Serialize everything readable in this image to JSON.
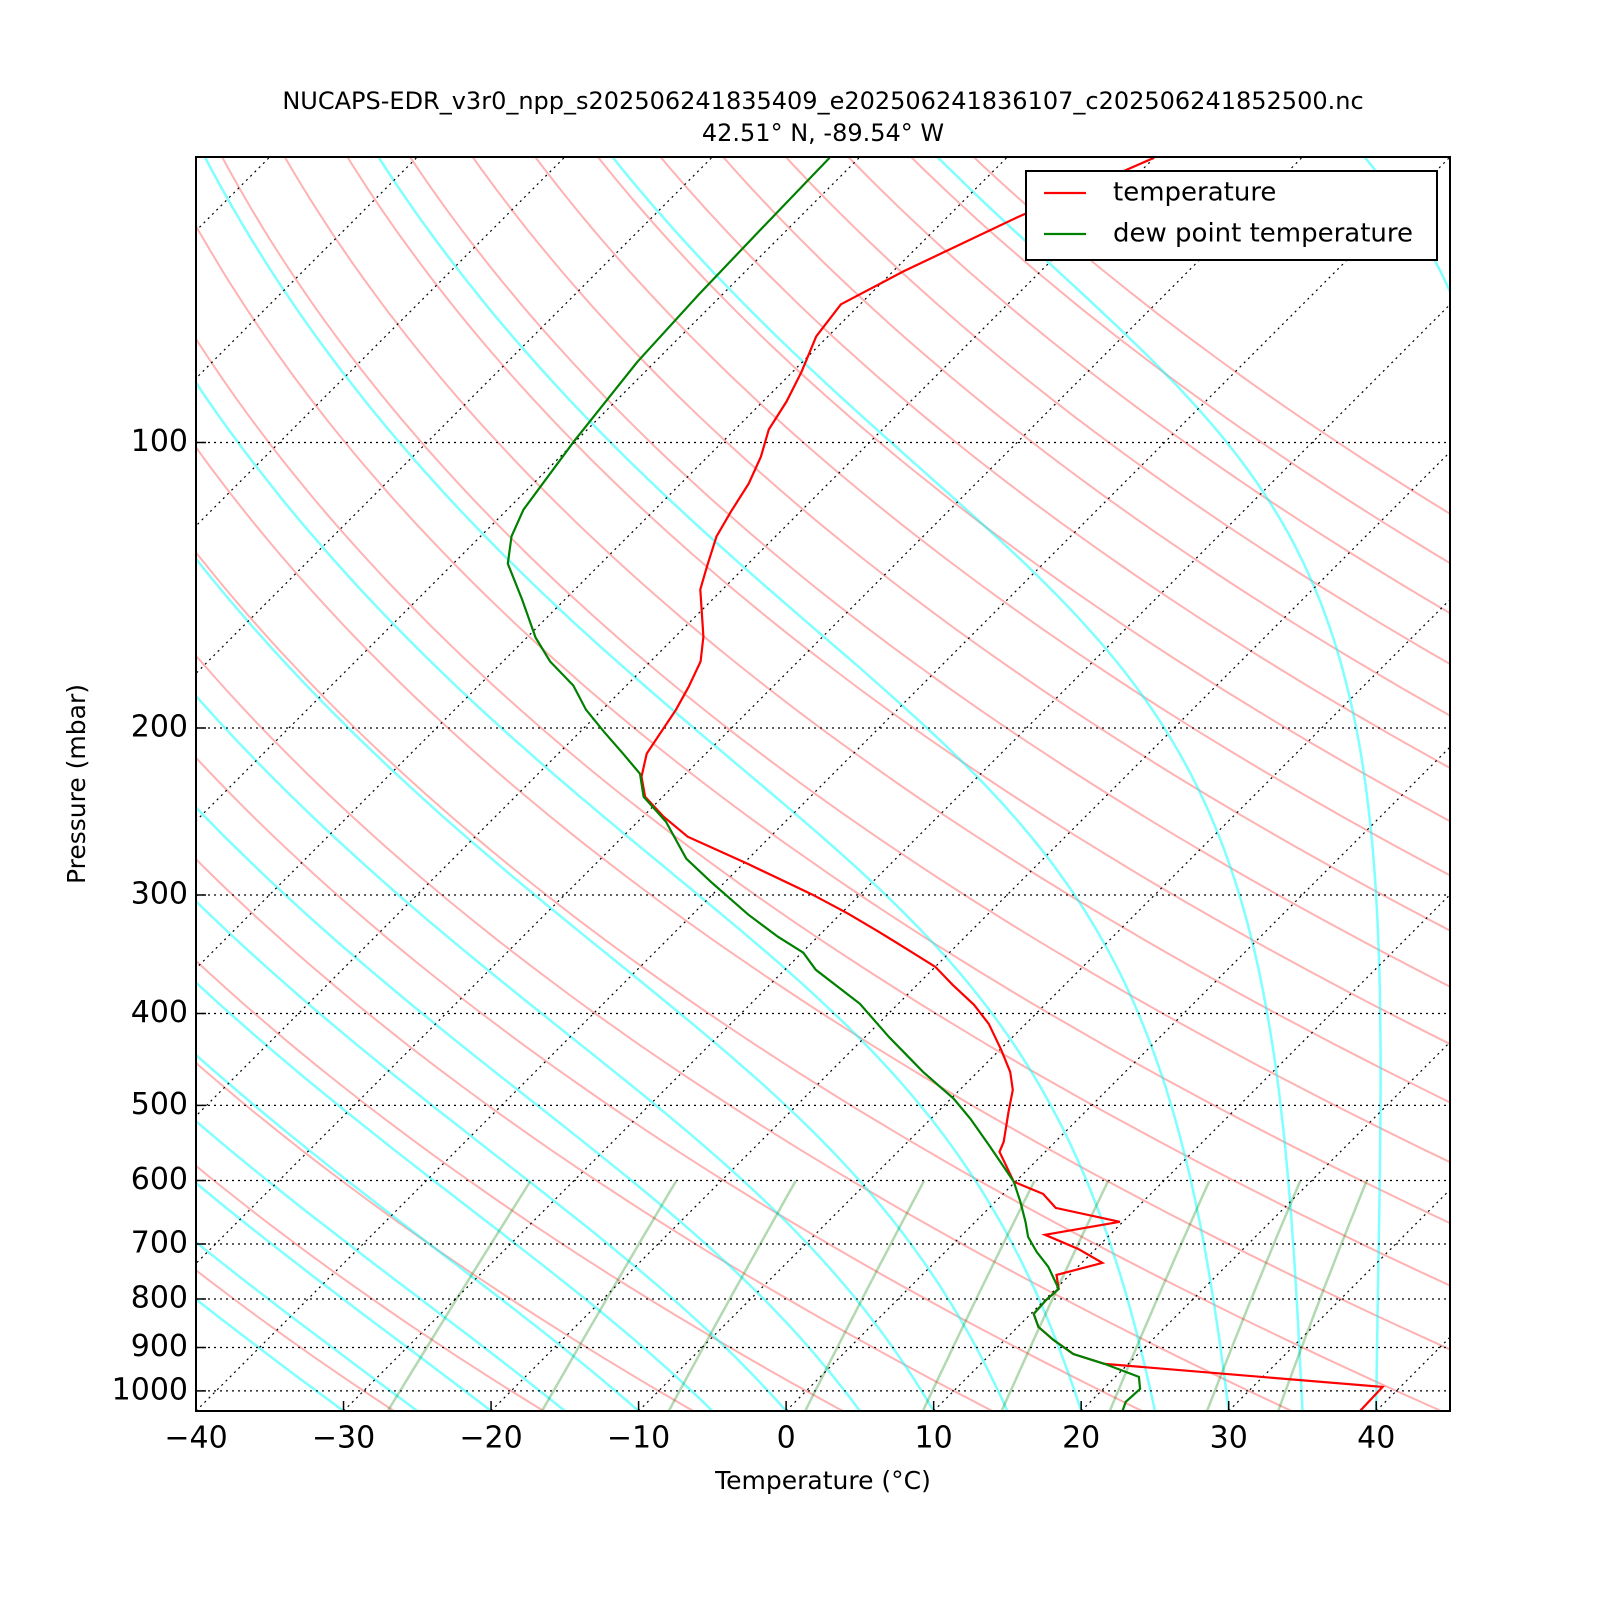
{
  "chart_data": {
    "type": "skewt",
    "title": "NUCAPS-EDR_v3r0_npp_s202506241835409_e202506241836107_c202506241852500.nc",
    "subtitle": "42.51° N, -89.54° W",
    "xlabel": "Temperature (°C)",
    "ylabel": "Pressure (mbar)",
    "xlim": [
      -40,
      45
    ],
    "ylim": [
      1050,
      50
    ],
    "log_y": true,
    "grid": true,
    "legend": "upper right",
    "xticks": [
      {
        "value": -40,
        "label": "−40"
      },
      {
        "value": -30,
        "label": "−30"
      },
      {
        "value": -20,
        "label": "−20"
      },
      {
        "value": -10,
        "label": "−10"
      },
      0,
      10,
      20,
      30,
      40
    ],
    "yticks": [
      100,
      200,
      300,
      400,
      500,
      600,
      700,
      800,
      900,
      1000
    ],
    "series": [
      {
        "name": "temperature",
        "color": "#ff0000",
        "temperature": [
          -60.0,
          -65.2,
          -69.3,
          -71.3,
          -70.8,
          -69.4,
          -68.4,
          -67.7,
          -66.4,
          -65.4,
          -64.7,
          -64.0,
          -62.6,
          -61.5,
          -58.1,
          -56.6,
          -55.7,
          -55.0,
          -54.4,
          -54.0,
          -52.8,
          -51.2,
          -48.6,
          -45.6,
          -39.7,
          -33.2,
          -29.5,
          -26.2,
          -23.0,
          -20.0,
          -17.6,
          -14.8,
          -12.5,
          -9.9,
          -7.8,
          -6.4,
          -5.2,
          -3.5,
          -3.1,
          -1.6,
          -0.1,
          2.7,
          4.5,
          9.8,
          5.6,
          8.8,
          11.4,
          9.1,
          10.2,
          10.1,
          10.2,
          11.4,
          13.3,
          15.6,
          18.4,
          38.8,
          38.9
        ],
        "pressure": [
          50.1,
          57.8,
          66.0,
          71.5,
          77.3,
          84.2,
          90.5,
          96.9,
          103.5,
          110.5,
          118.3,
          125.6,
          135.2,
          142.9,
          160.2,
          170.2,
          180.9,
          191.3,
          204.2,
          212.9,
          225.1,
          236.3,
          248.0,
          260.4,
          278.1,
          299.8,
          313.9,
          328.0,
          342.7,
          357.1,
          373.1,
          391.6,
          410.2,
          436.9,
          460.9,
          481.5,
          507.9,
          546.2,
          559.7,
          580.4,
          601.9,
          619.8,
          641.2,
          663.3,
          684.5,
          708.3,
          732.8,
          754.5,
          780.6,
          801.8,
          829.5,
          856.1,
          883.6,
          914.2,
          936.6,
          990.4,
          1050
        ]
      },
      {
        "name": "dew point temperature",
        "color": "#008000",
        "temperature": [
          -82.0,
          -81.8,
          -81.6,
          -81.2,
          -80.1,
          -78.9,
          -77.9,
          -76.3,
          -72.9,
          -69.4,
          -66.8,
          -63.6,
          -61.1,
          -58.4,
          -55.6,
          -53.1,
          -51.3,
          -48.1,
          -44.2,
          -41.0,
          -36.2,
          -32.7,
          -29.9,
          -27.9,
          -22.6,
          -18.4,
          -13.7,
          -9.8,
          -7.3,
          -4.3,
          -1.8,
          -0.1,
          1.7,
          3.4,
          4.6,
          6.2,
          8.0,
          10.2,
          10.1,
          10.2,
          11.4,
          13.3,
          15.6,
          18.4,
          21.6,
          22.5,
          22.4,
          22.8
        ],
        "pressure": [
          50.1,
          59.9,
          69.8,
          82.2,
          99.8,
          117.7,
          125.6,
          134.2,
          146.4,
          160.6,
          170.2,
          180.4,
          191.3,
          201.8,
          212.9,
          223.5,
          236.3,
          251.0,
          274.7,
          290.4,
          314.7,
          332.0,
          345.1,
          359.7,
          390.7,
          423.3,
          460.9,
          492.0,
          516.7,
          550.3,
          580.4,
          601.9,
          631.8,
          663.3,
          688.0,
          713.5,
          739.9,
          780.6,
          801.8,
          829.5,
          856.1,
          883.6,
          914.2,
          936.6,
          966.5,
          995.2,
          1027,
          1050
        ]
      }
    ]
  }
}
